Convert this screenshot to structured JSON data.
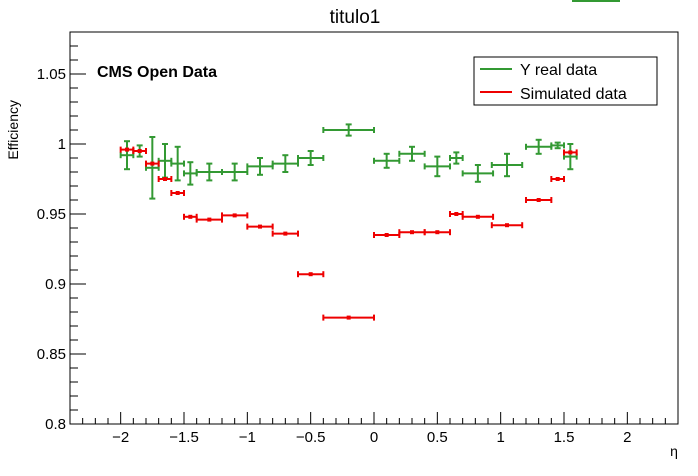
{
  "chart_data": {
    "type": "scatter",
    "title": "titulo1",
    "xlabel": "η",
    "ylabel": "Efficiency",
    "xlim": [
      -2.4,
      2.4
    ],
    "ylim": [
      0.8,
      1.08
    ],
    "xticks": [
      -2,
      -1.5,
      -1,
      -0.5,
      0,
      0.5,
      1,
      1.5,
      2
    ],
    "xtick_labels": [
      "−2",
      "−1.5",
      "−1",
      "−0.5",
      "0",
      "0.5",
      "1",
      "1.5",
      "2"
    ],
    "yticks": [
      0.8,
      0.85,
      0.9,
      0.95,
      1,
      1.05
    ],
    "ytick_labels": [
      "0.8",
      "0.85",
      "0.9",
      "0.95",
      "1",
      "1.05"
    ],
    "annotation": "CMS Open Data",
    "legend_position": "top-right",
    "series": [
      {
        "name": "Υ real data",
        "color": "#339933",
        "points": [
          {
            "x": -1.95,
            "xerr": 0.05,
            "y": 0.992,
            "yerr": 0.01
          },
          {
            "x": -1.85,
            "xerr": 0.05,
            "y": 0.995,
            "yerr": 0.004
          },
          {
            "x": -1.75,
            "xerr": 0.05,
            "y": 0.983,
            "yerr": 0.022
          },
          {
            "x": -1.65,
            "xerr": 0.05,
            "y": 0.988,
            "yerr": 0.012
          },
          {
            "x": -1.55,
            "xerr": 0.05,
            "y": 0.986,
            "yerr": 0.012
          },
          {
            "x": -1.45,
            "xerr": 0.05,
            "y": 0.979,
            "yerr": 0.008
          },
          {
            "x": -1.3,
            "xerr": 0.1,
            "y": 0.98,
            "yerr": 0.006
          },
          {
            "x": -1.1,
            "xerr": 0.1,
            "y": 0.98,
            "yerr": 0.006
          },
          {
            "x": -0.9,
            "xerr": 0.1,
            "y": 0.984,
            "yerr": 0.006
          },
          {
            "x": -0.7,
            "xerr": 0.1,
            "y": 0.986,
            "yerr": 0.006
          },
          {
            "x": -0.5,
            "xerr": 0.1,
            "y": 0.99,
            "yerr": 0.005
          },
          {
            "x": -0.2,
            "xerr": 0.2,
            "y": 1.01,
            "yerr": 0.004
          },
          {
            "x": 0.1,
            "xerr": 0.1,
            "y": 0.988,
            "yerr": 0.005
          },
          {
            "x": 0.3,
            "xerr": 0.1,
            "y": 0.993,
            "yerr": 0.005
          },
          {
            "x": 0.5,
            "xerr": 0.1,
            "y": 0.984,
            "yerr": 0.007
          },
          {
            "x": 0.65,
            "xerr": 0.05,
            "y": 0.99,
            "yerr": 0.004
          },
          {
            "x": 0.82,
            "xerr": 0.12,
            "y": 0.979,
            "yerr": 0.006
          },
          {
            "x": 1.05,
            "xerr": 0.12,
            "y": 0.985,
            "yerr": 0.008
          },
          {
            "x": 1.3,
            "xerr": 0.1,
            "y": 0.998,
            "yerr": 0.005
          },
          {
            "x": 1.45,
            "xerr": 0.05,
            "y": 0.999,
            "yerr": 0.002
          },
          {
            "x": 1.55,
            "xerr": 0.05,
            "y": 0.991,
            "yerr": 0.009
          }
        ]
      },
      {
        "name": "Simulated data",
        "color": "#ee0000",
        "points": [
          {
            "x": -1.95,
            "xerr": 0.05,
            "y": 0.996,
            "yerr": 0.001
          },
          {
            "x": -1.85,
            "xerr": 0.05,
            "y": 0.995,
            "yerr": 0.001
          },
          {
            "x": -1.75,
            "xerr": 0.05,
            "y": 0.986,
            "yerr": 0.001
          },
          {
            "x": -1.65,
            "xerr": 0.05,
            "y": 0.975,
            "yerr": 0.001
          },
          {
            "x": -1.55,
            "xerr": 0.05,
            "y": 0.965,
            "yerr": 0.001
          },
          {
            "x": -1.45,
            "xerr": 0.05,
            "y": 0.948,
            "yerr": 0.001
          },
          {
            "x": -1.3,
            "xerr": 0.1,
            "y": 0.946,
            "yerr": 0.001
          },
          {
            "x": -1.1,
            "xerr": 0.1,
            "y": 0.949,
            "yerr": 0.001
          },
          {
            "x": -0.9,
            "xerr": 0.1,
            "y": 0.941,
            "yerr": 0.001
          },
          {
            "x": -0.7,
            "xerr": 0.1,
            "y": 0.936,
            "yerr": 0.001
          },
          {
            "x": -0.5,
            "xerr": 0.1,
            "y": 0.907,
            "yerr": 0.001
          },
          {
            "x": -0.2,
            "xerr": 0.2,
            "y": 0.876,
            "yerr": 0.001
          },
          {
            "x": 0.1,
            "xerr": 0.1,
            "y": 0.935,
            "yerr": 0.001
          },
          {
            "x": 0.3,
            "xerr": 0.1,
            "y": 0.937,
            "yerr": 0.001
          },
          {
            "x": 0.5,
            "xerr": 0.1,
            "y": 0.937,
            "yerr": 0.001
          },
          {
            "x": 0.65,
            "xerr": 0.05,
            "y": 0.95,
            "yerr": 0.001
          },
          {
            "x": 0.82,
            "xerr": 0.12,
            "y": 0.948,
            "yerr": 0.001
          },
          {
            "x": 1.05,
            "xerr": 0.12,
            "y": 0.942,
            "yerr": 0.001
          },
          {
            "x": 1.3,
            "xerr": 0.1,
            "y": 0.96,
            "yerr": 0.001
          },
          {
            "x": 1.45,
            "xerr": 0.05,
            "y": 0.975,
            "yerr": 0.001
          },
          {
            "x": 1.55,
            "xerr": 0.05,
            "y": 0.994,
            "yerr": 0.001
          }
        ]
      }
    ]
  }
}
